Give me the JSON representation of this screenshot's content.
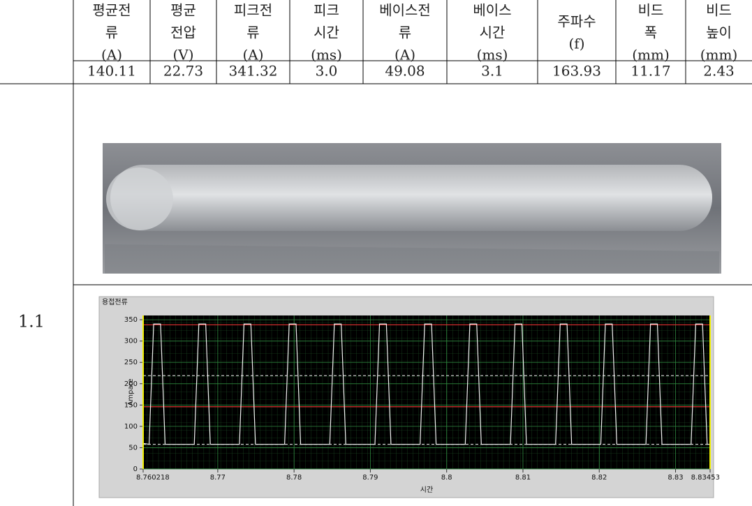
{
  "table": {
    "headers": [
      [
        "평균전",
        "류",
        "(A)"
      ],
      [
        "평균",
        "전압",
        "(V)"
      ],
      [
        "피크전",
        "류",
        "(A)"
      ],
      [
        "피크",
        "시간",
        "(ms)"
      ],
      [
        "베이스전",
        "류",
        "(A)"
      ],
      [
        "베이스",
        "시간",
        "(ms)"
      ],
      [
        "주파수",
        "(f)"
      ],
      [
        "비드",
        "폭",
        "(mm)"
      ],
      [
        "비드",
        "높이",
        "(mm)"
      ]
    ],
    "values": [
      "140.11",
      "22.73",
      "341.32",
      "3.0",
      "49.08",
      "3.1",
      "163.93",
      "11.17",
      "2.43"
    ],
    "row_label": "1.1"
  },
  "chart": {
    "type": "line",
    "title": "용접전류",
    "x_label": "시간",
    "y_label": "Ampare",
    "xlim": [
      8.760218,
      8.83453
    ],
    "ylim": [
      0,
      360
    ],
    "xticks": [
      8.760218,
      8.77,
      8.78,
      8.79,
      8.8,
      8.81,
      8.82,
      8.83,
      8.83453
    ],
    "yticks": [
      0,
      50,
      100,
      150,
      200,
      250,
      300,
      350
    ],
    "grid": true,
    "reference_lines": [
      {
        "value": 338,
        "color": "#e03030",
        "style": "solid"
      },
      {
        "value": 146,
        "color": "#e03030",
        "style": "solid"
      },
      {
        "value": 219,
        "color": "#dddddd",
        "style": "dashed"
      },
      {
        "value": 58,
        "color": "#dddddd",
        "style": "dashed"
      }
    ],
    "series": [
      {
        "color": "#f2f2f2",
        "x": [
          8.760218,
          8.761,
          8.7616,
          8.7625,
          8.7631,
          8.76692,
          8.76752,
          8.76842,
          8.76902,
          8.77284,
          8.77344,
          8.77434,
          8.77494,
          8.77876,
          8.77936,
          8.78026,
          8.78086,
          8.78468,
          8.78528,
          8.78618,
          8.78678,
          8.7906,
          8.7912,
          8.7921,
          8.7927,
          8.79652,
          8.79712,
          8.79802,
          8.79862,
          8.80244,
          8.80304,
          8.80394,
          8.80454,
          8.80836,
          8.80896,
          8.80986,
          8.81046,
          8.81428,
          8.81488,
          8.81578,
          8.81638,
          8.8202,
          8.8208,
          8.8217,
          8.8223,
          8.82612,
          8.82672,
          8.82762,
          8.82822,
          8.83204,
          8.83264,
          8.83354,
          8.83414,
          8.83453
        ],
        "values": [
          60,
          58,
          340,
          340,
          58,
          58,
          340,
          340,
          58,
          58,
          340,
          340,
          58,
          58,
          340,
          340,
          58,
          58,
          340,
          340,
          58,
          58,
          340,
          340,
          58,
          58,
          340,
          340,
          58,
          58,
          340,
          340,
          58,
          58,
          340,
          340,
          58,
          58,
          340,
          340,
          58,
          58,
          340,
          340,
          58,
          58,
          340,
          340,
          58,
          58,
          340,
          340,
          58,
          58
        ]
      }
    ]
  }
}
